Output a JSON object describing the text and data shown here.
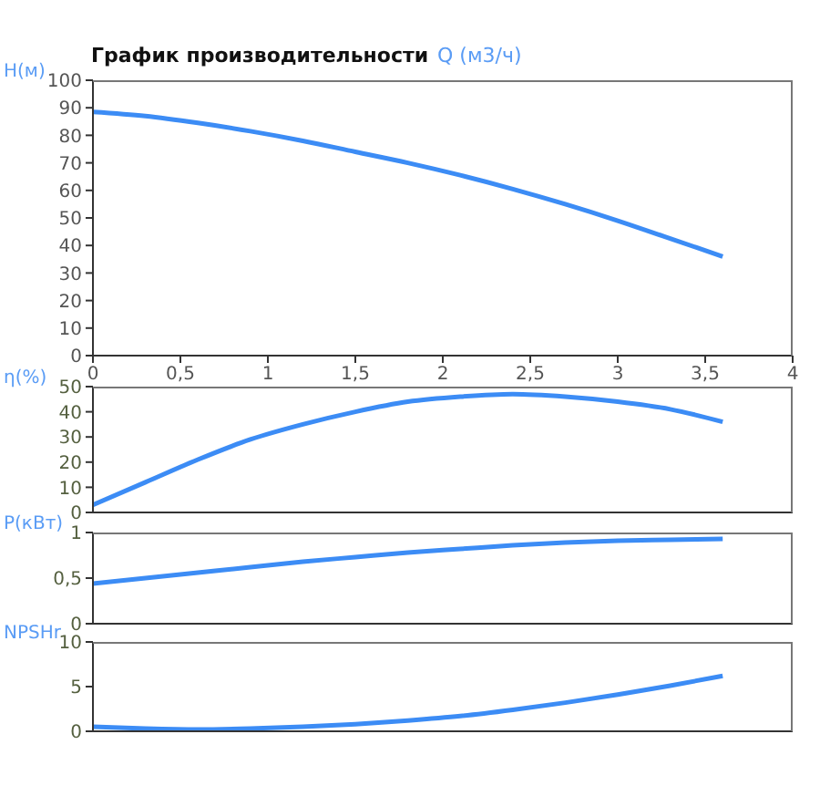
{
  "chart_data": [
    {
      "type": "line",
      "title": "График производительности",
      "xlabel": "Q (м3/ч)",
      "ylabel": "H(м)",
      "x": [
        0,
        0.3,
        0.6,
        0.9,
        1.2,
        1.5,
        1.8,
        2.1,
        2.4,
        2.7,
        3.0,
        3.3,
        3.6
      ],
      "series": [
        {
          "color": "#3c8cf5",
          "values": [
            88.5,
            87,
            84.5,
            81.5,
            78,
            74,
            70,
            65.5,
            60.5,
            55,
            49,
            42.5,
            36
          ]
        }
      ],
      "xlim": [
        0,
        4
      ],
      "xticks": [
        0,
        {
          "value": 0.5,
          "label": "0,5"
        },
        1,
        {
          "value": 1.5,
          "label": "1,5"
        },
        2,
        {
          "value": 2.5,
          "label": "2,5"
        },
        3,
        {
          "value": 3.5,
          "label": "3,5"
        },
        4
      ],
      "ylim": [
        0,
        100
      ],
      "yticks": [
        0,
        10,
        20,
        30,
        40,
        50,
        60,
        70,
        80,
        90,
        100
      ],
      "grid": false,
      "legend": false
    },
    {
      "type": "line",
      "ylabel": "η(%)",
      "x": [
        0,
        0.3,
        0.6,
        0.9,
        1.2,
        1.5,
        1.8,
        2.1,
        2.4,
        2.7,
        3.0,
        3.3,
        3.6
      ],
      "series": [
        {
          "color": "#3c8cf5",
          "values": [
            3,
            12,
            21,
            29,
            35,
            40,
            44,
            46,
            47,
            46,
            44,
            41,
            36
          ]
        }
      ],
      "xlim": [
        0,
        4
      ],
      "ylim": [
        0,
        50
      ],
      "yticks": [
        0,
        10,
        20,
        30,
        40,
        50
      ],
      "tick_labels": "y",
      "grid": false,
      "legend": false
    },
    {
      "type": "line",
      "ylabel": "P(кВт)",
      "x": [
        0,
        0.3,
        0.6,
        0.9,
        1.2,
        1.5,
        1.8,
        2.1,
        2.4,
        2.7,
        3.0,
        3.3,
        3.6
      ],
      "series": [
        {
          "color": "#3c8cf5",
          "values": [
            0.44,
            0.5,
            0.56,
            0.62,
            0.68,
            0.73,
            0.78,
            0.82,
            0.86,
            0.89,
            0.91,
            0.92,
            0.93
          ]
        }
      ],
      "xlim": [
        0,
        4
      ],
      "ylim": [
        0,
        1
      ],
      "yticks": [
        0,
        {
          "value": 0.5,
          "label": "0,5"
        },
        1
      ],
      "tick_labels": "y",
      "grid": false,
      "legend": false
    },
    {
      "type": "line",
      "ylabel": "NPSHr",
      "x": [
        0,
        0.3,
        0.6,
        0.9,
        1.2,
        1.5,
        1.8,
        2.1,
        2.4,
        2.7,
        3.0,
        3.3,
        3.6
      ],
      "series": [
        {
          "color": "#3c8cf5",
          "values": [
            0.5,
            0.3,
            0.2,
            0.3,
            0.5,
            0.8,
            1.2,
            1.7,
            2.4,
            3.2,
            4.1,
            5.1,
            6.2
          ]
        }
      ],
      "xlim": [
        0,
        4
      ],
      "ylim": [
        0,
        10
      ],
      "yticks": [
        0,
        5,
        10
      ],
      "tick_labels": "y",
      "grid": false,
      "legend": false
    }
  ]
}
